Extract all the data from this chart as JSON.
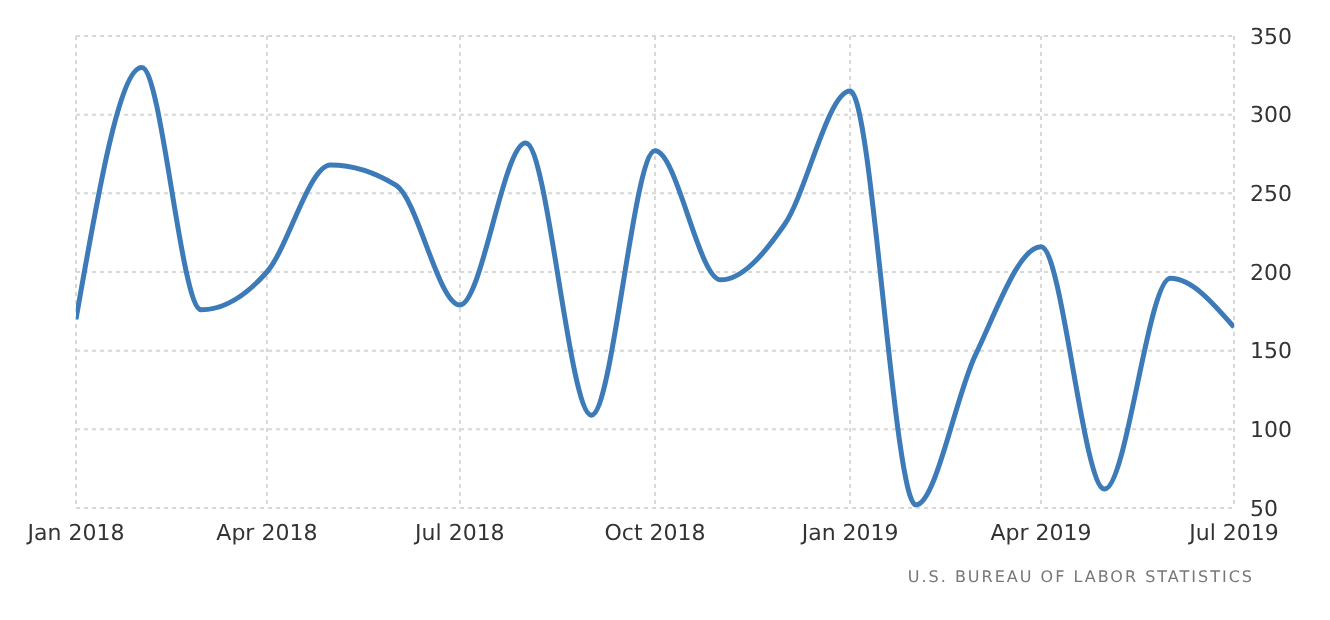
{
  "chart_data": {
    "type": "line",
    "x": [
      "2018-01",
      "2018-02",
      "2018-03",
      "2018-04",
      "2018-05",
      "2018-06",
      "2018-07",
      "2018-08",
      "2018-09",
      "2018-10",
      "2018-11",
      "2018-12",
      "2019-01",
      "2019-02",
      "2019-03",
      "2019-04",
      "2019-05",
      "2019-06",
      "2019-07"
    ],
    "series": [
      {
        "color": "#3d7ab8",
        "values": [
          170,
          330,
          176,
          200,
          268,
          255,
          179,
          282,
          109,
          277,
          195,
          230,
          315,
          52,
          147,
          216,
          62,
          196,
          165
        ]
      }
    ],
    "xlim": [
      "2018-01",
      "2019-07"
    ],
    "xticks": [
      {
        "value": "2018-01",
        "label": "Jan 2018"
      },
      {
        "value": "2018-04",
        "label": "Apr 2018"
      },
      {
        "value": "2018-07",
        "label": "Jul 2018"
      },
      {
        "value": "2018-10",
        "label": "Oct 2018"
      },
      {
        "value": "2019-01",
        "label": "Jan 2019"
      },
      {
        "value": "2019-04",
        "label": "Apr 2019"
      },
      {
        "value": "2019-07",
        "label": "Jul 2019"
      }
    ],
    "ylim": [
      50,
      350
    ],
    "yticks": [
      50,
      100,
      150,
      200,
      250,
      300,
      350
    ],
    "grid": true,
    "marker": "none",
    "line_style": "solid",
    "legend": false,
    "annotations": [
      "U.S. BUREAU OF LABOR STATISTICS"
    ]
  }
}
